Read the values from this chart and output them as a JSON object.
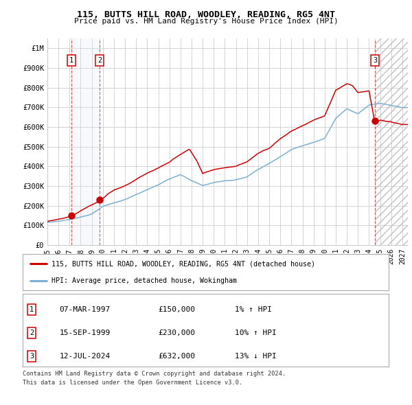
{
  "title": "115, BUTTS HILL ROAD, WOODLEY, READING, RG5 4NT",
  "subtitle": "Price paid vs. HM Land Registry's House Price Index (HPI)",
  "ylim": [
    0,
    1050000
  ],
  "xlim_start": 1995.0,
  "xlim_end": 2027.5,
  "yticks": [
    0,
    100000,
    200000,
    300000,
    400000,
    500000,
    600000,
    700000,
    800000,
    900000,
    1000000
  ],
  "ytick_labels": [
    "£0",
    "£100K",
    "£200K",
    "£300K",
    "£400K",
    "£500K",
    "£600K",
    "£700K",
    "£800K",
    "£900K",
    "£1M"
  ],
  "xticks": [
    1995,
    1996,
    1997,
    1998,
    1999,
    2000,
    2001,
    2002,
    2003,
    2004,
    2005,
    2006,
    2007,
    2008,
    2009,
    2010,
    2011,
    2012,
    2013,
    2014,
    2015,
    2016,
    2017,
    2018,
    2019,
    2020,
    2021,
    2022,
    2023,
    2024,
    2025,
    2026,
    2027
  ],
  "hpi_color": "#7bafd4",
  "price_color": "#cc0000",
  "sale_marker_color": "#cc0000",
  "vline_color": "#cc0000",
  "shade_color": "#dce8f5",
  "grid_color": "#cccccc",
  "bg_color": "#ffffff",
  "sale1_x": 1997.18,
  "sale1_y": 150000,
  "sale1_label": "1",
  "sale2_x": 1999.71,
  "sale2_y": 230000,
  "sale2_label": "2",
  "sale3_x": 2024.53,
  "sale3_y": 632000,
  "sale3_label": "3",
  "legend_line1": "115, BUTTS HILL ROAD, WOODLEY, READING, RG5 4NT (detached house)",
  "legend_line2": "HPI: Average price, detached house, Wokingham",
  "table_rows": [
    {
      "num": "1",
      "date": "07-MAR-1997",
      "price": "£150,000",
      "hpi": "1% ↑ HPI"
    },
    {
      "num": "2",
      "date": "15-SEP-1999",
      "price": "£230,000",
      "hpi": "10% ↑ HPI"
    },
    {
      "num": "3",
      "date": "12-JUL-2024",
      "price": "£632,000",
      "hpi": "13% ↓ HPI"
    }
  ],
  "footnote1": "Contains HM Land Registry data © Crown copyright and database right 2024.",
  "footnote2": "This data is licensed under the Open Government Licence v3.0.",
  "shade_x1": 1997.18,
  "shade_x2": 1999.71,
  "hatch_x": 2024.53,
  "hatch_x_end": 2027.5
}
